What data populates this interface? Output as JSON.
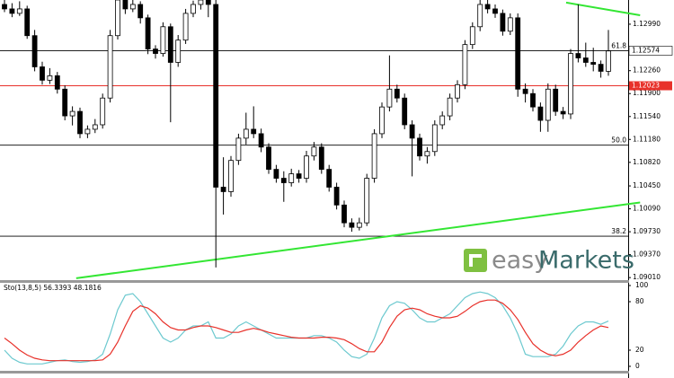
{
  "chart_data": [
    {
      "type": "candlestick",
      "title": null,
      "ohlc": [
        [
          1.133,
          1.1337,
          1.1318,
          1.1323
        ],
        [
          1.1323,
          1.1332,
          1.131,
          1.1316
        ],
        [
          1.1316,
          1.1335,
          1.1312,
          1.1323
        ],
        [
          1.1323,
          1.1328,
          1.1276,
          1.1281
        ],
        [
          1.1281,
          1.129,
          1.1225,
          1.1232
        ],
        [
          1.1232,
          1.124,
          1.1204,
          1.1211
        ],
        [
          1.1211,
          1.123,
          1.1205,
          1.1218
        ],
        [
          1.1218,
          1.1224,
          1.119,
          1.1197
        ],
        [
          1.1197,
          1.1203,
          1.1148,
          1.1155
        ],
        [
          1.1155,
          1.117,
          1.114,
          1.1162
        ],
        [
          1.1162,
          1.1168,
          1.112,
          1.1127
        ],
        [
          1.1127,
          1.114,
          1.112,
          1.1134
        ],
        [
          1.1134,
          1.115,
          1.1128,
          1.1141
        ],
        [
          1.1141,
          1.119,
          1.1135,
          1.1183
        ],
        [
          1.1183,
          1.129,
          1.1176,
          1.1281
        ],
        [
          1.1281,
          1.134,
          1.1275,
          1.1337
        ],
        [
          1.1337,
          1.134,
          1.1315,
          1.1323
        ],
        [
          1.1323,
          1.1337,
          1.1318,
          1.133
        ],
        [
          1.133,
          1.1335,
          1.13,
          1.1309
        ],
        [
          1.1309,
          1.1314,
          1.1252,
          1.126
        ],
        [
          1.126,
          1.1266,
          1.1245,
          1.1253
        ],
        [
          1.1253,
          1.1302,
          1.1248,
          1.1295
        ],
        [
          1.1295,
          1.13,
          1.1145,
          1.1239
        ],
        [
          1.1239,
          1.1282,
          1.1232,
          1.1274
        ],
        [
          1.1274,
          1.1323,
          1.1268,
          1.1316
        ],
        [
          1.1316,
          1.1336,
          1.131,
          1.133
        ],
        [
          1.133,
          1.134,
          1.1322,
          1.1337
        ],
        [
          1.1337,
          1.134,
          1.131,
          1.133
        ],
        [
          1.133,
          1.1337,
          1.0917,
          1.1043
        ],
        [
          1.1043,
          1.109,
          1.1,
          1.1036
        ],
        [
          1.1036,
          1.1092,
          1.1028,
          1.1085
        ],
        [
          1.1085,
          1.1127,
          1.1078,
          1.112
        ],
        [
          1.112,
          1.116,
          1.111,
          1.1134
        ],
        [
          1.1134,
          1.117,
          1.112,
          1.1127
        ],
        [
          1.1127,
          1.1135,
          1.1098,
          1.1106
        ],
        [
          1.1106,
          1.1112,
          1.1064,
          1.1071
        ],
        [
          1.1071,
          1.1078,
          1.105,
          1.1057
        ],
        [
          1.1057,
          1.1068,
          1.102,
          1.105
        ],
        [
          1.105,
          1.1072,
          1.1044,
          1.1064
        ],
        [
          1.1064,
          1.107,
          1.105,
          1.1057
        ],
        [
          1.1057,
          1.11,
          1.105,
          1.1092
        ],
        [
          1.1092,
          1.1114,
          1.1085,
          1.1106
        ],
        [
          1.1106,
          1.1112,
          1.1064,
          1.1071
        ],
        [
          1.1071,
          1.1078,
          1.1036,
          1.1043
        ],
        [
          1.1043,
          1.105,
          1.1008,
          1.1015
        ],
        [
          1.1015,
          1.1022,
          1.098,
          1.0987
        ],
        [
          1.0987,
          1.0994,
          1.0973,
          1.098
        ],
        [
          1.098,
          1.0995,
          1.0975,
          1.0987
        ],
        [
          1.0987,
          1.1064,
          1.0982,
          1.1057
        ],
        [
          1.1057,
          1.1134,
          1.105,
          1.1127
        ],
        [
          1.1127,
          1.1176,
          1.112,
          1.1169
        ],
        [
          1.1169,
          1.125,
          1.1162,
          1.1197
        ],
        [
          1.1197,
          1.1204,
          1.1176,
          1.1183
        ],
        [
          1.1183,
          1.119,
          1.1134,
          1.1141
        ],
        [
          1.1141,
          1.1148,
          1.106,
          1.112
        ],
        [
          1.112,
          1.1127,
          1.1085,
          1.1092
        ],
        [
          1.1092,
          1.1106,
          1.108,
          1.1099
        ],
        [
          1.1099,
          1.1148,
          1.1092,
          1.1141
        ],
        [
          1.1141,
          1.1162,
          1.1134,
          1.1155
        ],
        [
          1.1155,
          1.119,
          1.1148,
          1.1183
        ],
        [
          1.1183,
          1.1211,
          1.1176,
          1.1204
        ],
        [
          1.1204,
          1.1274,
          1.1197,
          1.1267
        ],
        [
          1.1267,
          1.1302,
          1.126,
          1.1295
        ],
        [
          1.1295,
          1.134,
          1.1288,
          1.133
        ],
        [
          1.133,
          1.1337,
          1.1316,
          1.1323
        ],
        [
          1.1323,
          1.133,
          1.1309,
          1.1316
        ],
        [
          1.1316,
          1.1322,
          1.1281,
          1.1288
        ],
        [
          1.1288,
          1.1316,
          1.1282,
          1.1309
        ],
        [
          1.1309,
          1.1316,
          1.1185,
          1.1197
        ],
        [
          1.1197,
          1.1206,
          1.1176,
          1.119
        ],
        [
          1.119,
          1.1197,
          1.1162,
          1.1169
        ],
        [
          1.1169,
          1.1176,
          1.113,
          1.1148
        ],
        [
          1.1148,
          1.1206,
          1.113,
          1.1197
        ],
        [
          1.1197,
          1.1204,
          1.1155,
          1.1162
        ],
        [
          1.1162,
          1.1169,
          1.115,
          1.1158
        ],
        [
          1.1158,
          1.126,
          1.115,
          1.1253
        ],
        [
          1.1253,
          1.133,
          1.1239,
          1.1246
        ],
        [
          1.1246,
          1.127,
          1.1232,
          1.1239
        ],
        [
          1.1239,
          1.1262,
          1.1225,
          1.1236
        ],
        [
          1.1236,
          1.1242,
          1.1215,
          1.1225
        ],
        [
          1.1225,
          1.129,
          1.1218,
          1.1257
        ]
      ],
      "ylim": [
        1.0897,
        1.1337
      ],
      "yticks": [
        {
          "value": 1.1299,
          "label": "1.12990"
        },
        {
          "value": 1.1226,
          "label": "1.12260"
        },
        {
          "value": 1.119,
          "label": "1.11900"
        },
        {
          "value": 1.1154,
          "label": "1.11540"
        },
        {
          "value": 1.1118,
          "label": "1.11180"
        },
        {
          "value": 1.1082,
          "label": "1.10820"
        },
        {
          "value": 1.1045,
          "label": "1.10450"
        },
        {
          "value": 1.1009,
          "label": "1.10090"
        },
        {
          "value": 1.0973,
          "label": "1.09730"
        },
        {
          "value": 1.0937,
          "label": "1.09370"
        },
        {
          "value": 1.0901,
          "label": "1.09010"
        }
      ],
      "levels": [
        {
          "label": "61.8",
          "value": 1.12574
        },
        {
          "label": "50.0",
          "value": 1.1109
        },
        {
          "label": "38.2",
          "value": 1.0966
        }
      ],
      "current_price": 1.12574,
      "support_price": 1.12023,
      "trendlines": [
        {
          "color": "#33e633",
          "from": [
            9.5,
            1.09
          ],
          "to": [
            84.2,
            1.1019
          ]
        },
        {
          "color": "#33e633",
          "from": [
            74.4,
            1.1333
          ],
          "to": [
            84.2,
            1.1313
          ]
        }
      ],
      "watermark": [
        "easy",
        "Markets"
      ]
    },
    {
      "type": "line",
      "title": "Sto(13,8,5) 56.3393 48.1816",
      "ylim": [
        0,
        100
      ],
      "yticks": [
        100,
        80,
        20,
        0
      ],
      "series": [
        {
          "name": null,
          "color": "#6cc9cf",
          "values": [
            20,
            10,
            5,
            3,
            3,
            3,
            5,
            7,
            8,
            6,
            5,
            6,
            8,
            15,
            40,
            70,
            88,
            90,
            80,
            65,
            50,
            35,
            30,
            35,
            45,
            50,
            50,
            55,
            35,
            35,
            40,
            50,
            55,
            50,
            45,
            40,
            35,
            35,
            35,
            35,
            35,
            38,
            38,
            35,
            30,
            20,
            12,
            10,
            15,
            35,
            60,
            75,
            80,
            78,
            70,
            60,
            55,
            55,
            60,
            65,
            75,
            85,
            90,
            92,
            90,
            85,
            75,
            60,
            40,
            15,
            12,
            12,
            12,
            15,
            25,
            40,
            50,
            55,
            55,
            52,
            56
          ]
        },
        {
          "name": null,
          "color": "#e8312a",
          "values": [
            35,
            28,
            20,
            14,
            10,
            8,
            7,
            7,
            7,
            7,
            7,
            7,
            7,
            8,
            15,
            30,
            50,
            68,
            75,
            72,
            65,
            55,
            48,
            45,
            45,
            48,
            50,
            50,
            48,
            45,
            42,
            42,
            45,
            47,
            45,
            42,
            40,
            38,
            36,
            35,
            35,
            35,
            36,
            36,
            35,
            33,
            28,
            22,
            18,
            18,
            30,
            48,
            62,
            70,
            72,
            70,
            65,
            62,
            60,
            60,
            62,
            68,
            75,
            80,
            82,
            82,
            78,
            70,
            58,
            42,
            28,
            20,
            15,
            13,
            15,
            20,
            30,
            38,
            45,
            50,
            48
          ]
        }
      ]
    }
  ]
}
